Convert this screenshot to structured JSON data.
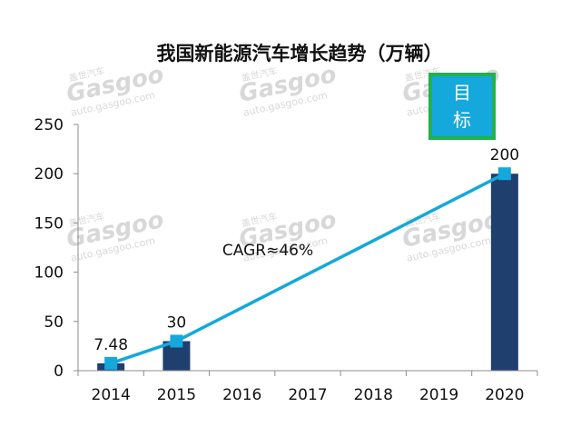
{
  "chart_data": {
    "type": "bar",
    "title": "我国新能源汽车增长趋势（万辆）",
    "categories": [
      "2014",
      "2015",
      "2016",
      "2017",
      "2018",
      "2019",
      "2020"
    ],
    "series": [
      {
        "name": "bars",
        "type": "bar",
        "values": [
          7.48,
          30,
          null,
          null,
          null,
          null,
          200
        ]
      },
      {
        "name": "trend",
        "type": "line",
        "points": [
          [
            "2014",
            7.48
          ],
          [
            "2015",
            30
          ],
          [
            "2020",
            200
          ]
        ]
      }
    ],
    "data_labels": [
      {
        "category": "2014",
        "text": "7.48"
      },
      {
        "category": "2015",
        "text": "30"
      },
      {
        "category": "2020",
        "text": "200"
      }
    ],
    "annotation": "CAGR≈46%",
    "target_label": "目标",
    "yticks": [
      0,
      50,
      100,
      150,
      200,
      250
    ],
    "ylim": [
      0,
      250
    ],
    "xlabel": "",
    "ylabel": "",
    "watermark": {
      "brand": "Gasgoo",
      "cn": "盖世汽车",
      "url": "auto.gasgoo.com"
    },
    "colors": {
      "bar": "#1f3f6e",
      "line": "#14a8dc",
      "marker": "#14a8dc",
      "target_fill": "#14a8dc",
      "target_border": "#22b14c",
      "axis": "#8c8c8c"
    }
  }
}
